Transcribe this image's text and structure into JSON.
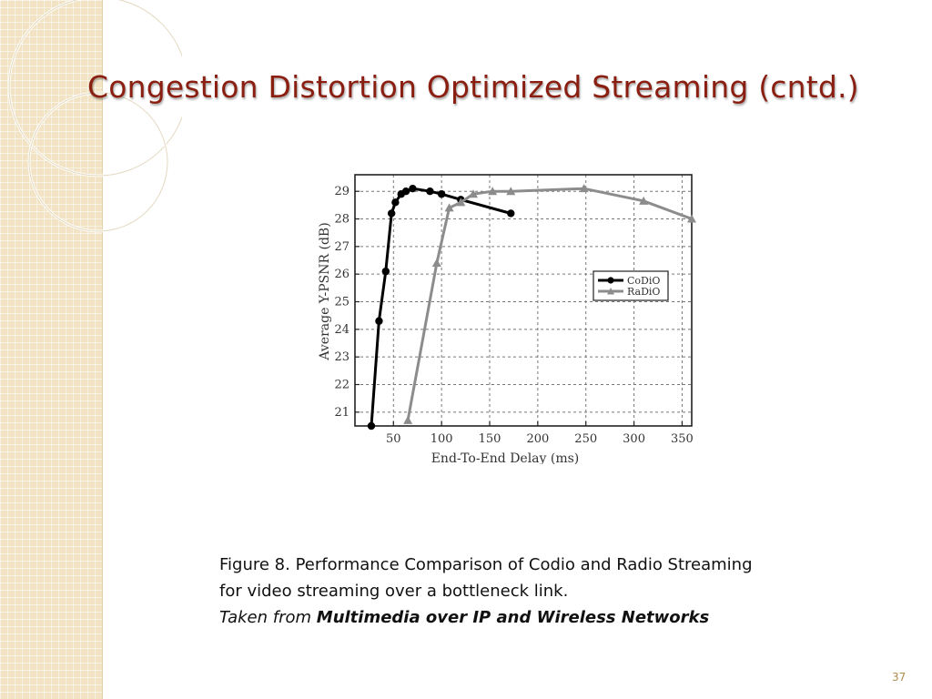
{
  "slide": {
    "title": "Congestion Distortion Optimized Streaming (cntd.)",
    "page_number": "37"
  },
  "caption": {
    "line1": "Figure 8. Performance Comparison of Codio and Radio Streaming",
    "line2": "for video streaming over a bottleneck link.",
    "source_prefix": "Taken from ",
    "source_title": "Multimedia over IP and Wireless Networks"
  },
  "colors": {
    "title": "#8a1f11",
    "band": "#f1e3c3",
    "codio": "#000000",
    "radio": "#8c8c8c"
  },
  "chart_data": {
    "type": "line",
    "title": "",
    "xlabel": "End-To-End Delay (ms)",
    "ylabel": "Average Y-PSNR (dB)",
    "xlim": [
      10,
      360
    ],
    "ylim": [
      20.5,
      29.6
    ],
    "xticks": [
      50,
      100,
      150,
      200,
      250,
      300,
      350
    ],
    "yticks": [
      21,
      22,
      23,
      24,
      25,
      26,
      27,
      28,
      29
    ],
    "grid": true,
    "legend_position": "center-right",
    "series": [
      {
        "name": "CoDiO",
        "color": "#000000",
        "marker": "circle",
        "x": [
          27,
          35,
          42,
          48,
          52,
          58,
          63,
          70,
          88,
          100,
          120,
          172
        ],
        "y": [
          20.5,
          24.3,
          26.1,
          28.2,
          28.6,
          28.9,
          29.0,
          29.1,
          29.0,
          28.9,
          28.7,
          28.2
        ]
      },
      {
        "name": "RaDiO",
        "color": "#8c8c8c",
        "marker": "triangle",
        "x": [
          65,
          95,
          108,
          120,
          133,
          153,
          172,
          248,
          310,
          360
        ],
        "y": [
          20.7,
          26.4,
          28.4,
          28.6,
          28.9,
          29.0,
          29.0,
          29.1,
          28.65,
          28.0
        ]
      }
    ]
  }
}
